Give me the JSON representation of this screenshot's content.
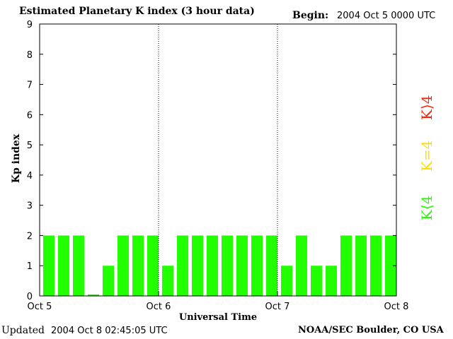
{
  "header": {
    "title": "Estimated Planetary K index (3 hour data)",
    "begin_label": "Begin:",
    "begin_value": "2004 Oct 5 0000 UTC"
  },
  "footer": {
    "updated_label": "Updated",
    "updated_value": "2004 Oct  8 02:45:05 UTC",
    "source": "NOAA/SEC Boulder, CO USA"
  },
  "legend": {
    "high": "K⟩4",
    "equal": "K=4",
    "low": "K⟨4"
  },
  "colors": {
    "low": "#22ff00",
    "equal": "#ffdd00",
    "high": "#ff2200"
  },
  "chart_data": {
    "type": "bar",
    "title": "Estimated Planetary K index (3 hour data)",
    "xlabel": "Universal Time",
    "ylabel": "Kp index",
    "ylim": [
      0,
      9
    ],
    "yticks": [
      0,
      1,
      2,
      3,
      4,
      5,
      6,
      7,
      8,
      9
    ],
    "x_tick_labels": [
      "Oct 5",
      "Oct 6",
      "Oct 7",
      "Oct 8"
    ],
    "day_dividers": [
      "Oct 6",
      "Oct 7"
    ],
    "bar_interval_hours": 3,
    "values": [
      2,
      2,
      2,
      0.05,
      1,
      2,
      2,
      2,
      1,
      2,
      2,
      2,
      2,
      2,
      2,
      2,
      1,
      2,
      1,
      1,
      2,
      2,
      2,
      2
    ]
  }
}
